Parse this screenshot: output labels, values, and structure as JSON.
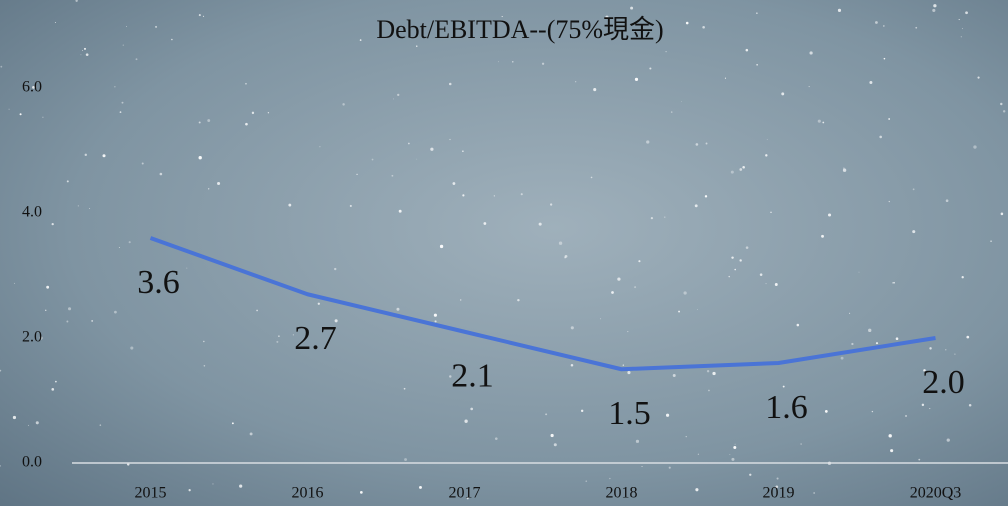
{
  "chart_data": {
    "type": "line",
    "title": "Debt/EBITDA--(75%現金)",
    "categories": [
      "2015",
      "2016",
      "2017",
      "2018",
      "2019",
      "2020Q3"
    ],
    "series": [
      {
        "color": "#4a74d6",
        "values": [
          3.6,
          2.7,
          2.1,
          1.5,
          1.6,
          2.0
        ],
        "value_labels": [
          "3.6",
          "2.7",
          "2.1",
          "1.5",
          "1.6",
          "2.0"
        ]
      }
    ],
    "ylim": [
      0,
      6
    ],
    "yticks": [
      {
        "value": 0,
        "label": "0.0"
      },
      {
        "value": 2,
        "label": "2.0"
      },
      {
        "value": 4,
        "label": "4.0"
      },
      {
        "value": 6,
        "label": "6.0"
      }
    ]
  }
}
